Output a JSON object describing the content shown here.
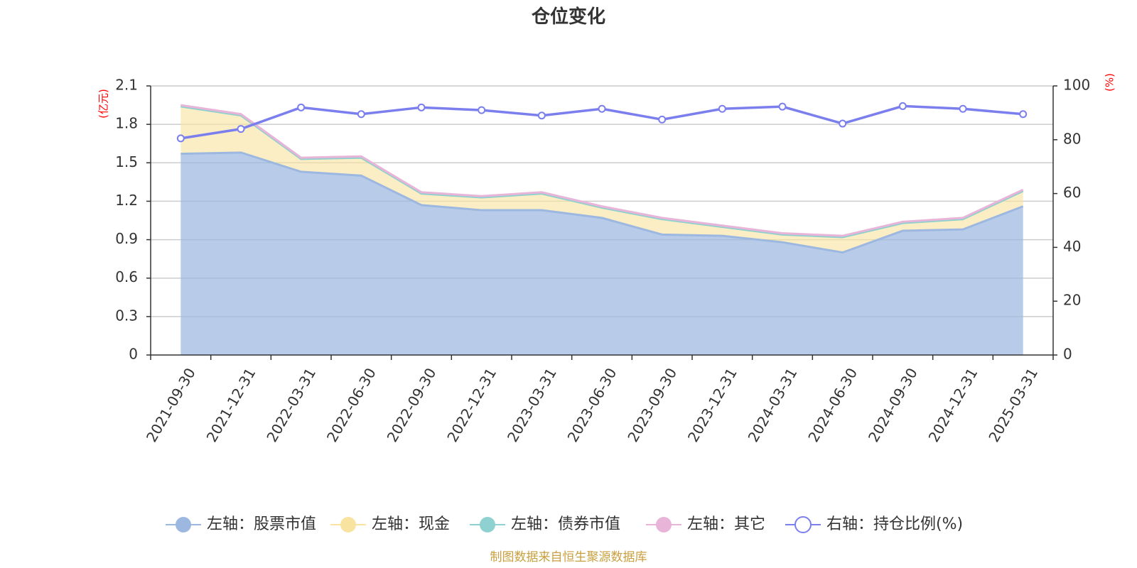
{
  "chart_data": {
    "type": "area",
    "title": "仓位变化",
    "categories": [
      "2021-09-30",
      "2021-12-31",
      "2022-03-31",
      "2022-06-30",
      "2022-09-30",
      "2022-12-31",
      "2023-03-31",
      "2023-06-30",
      "2023-09-30",
      "2023-12-31",
      "2024-03-31",
      "2024-06-30",
      "2024-09-30",
      "2024-12-31",
      "2025-03-31"
    ],
    "left_axis": {
      "unit": "(亿元)",
      "ylim": [
        0,
        2.1
      ],
      "ticks": [
        "0",
        "0.3",
        "0.6",
        "0.9",
        "1.2",
        "1.5",
        "1.8",
        "2.1"
      ]
    },
    "right_axis": {
      "unit": "(%)",
      "ylim": [
        0,
        100
      ],
      "ticks": [
        "0",
        "20",
        "40",
        "60",
        "80",
        "100"
      ]
    },
    "stacked": true,
    "series": [
      {
        "name": "左轴：股票市值",
        "axis": "left",
        "color": "#9db8e0",
        "values": [
          1.57,
          1.58,
          1.43,
          1.4,
          1.17,
          1.13,
          1.13,
          1.07,
          0.94,
          0.93,
          0.88,
          0.8,
          0.97,
          0.98,
          1.16
        ]
      },
      {
        "name": "左轴：现金",
        "axis": "left",
        "color": "#f8e4a0",
        "values": [
          0.37,
          0.29,
          0.1,
          0.14,
          0.09,
          0.1,
          0.13,
          0.08,
          0.12,
          0.07,
          0.06,
          0.12,
          0.06,
          0.08,
          0.12
        ]
      },
      {
        "name": "左轴：债券市值",
        "axis": "left",
        "color": "#8fd0d0",
        "values": [
          0,
          0,
          0,
          0,
          0,
          0,
          0,
          0,
          0,
          0,
          0,
          0,
          0,
          0,
          0
        ]
      },
      {
        "name": "左轴：其它",
        "axis": "left",
        "color": "#e8b4d8",
        "values": [
          0.01,
          0.01,
          0.01,
          0.01,
          0.01,
          0.01,
          0.01,
          0.01,
          0.01,
          0.01,
          0.01,
          0.01,
          0.01,
          0.01,
          0.01
        ]
      },
      {
        "name": "右轴：持仓比例(%)",
        "axis": "right",
        "color": "#7b7fee",
        "values": [
          80.5,
          84.0,
          92.0,
          89.5,
          92.0,
          91.0,
          89.0,
          91.5,
          87.5,
          91.5,
          92.3,
          86.0,
          92.5,
          91.5,
          89.5
        ]
      }
    ],
    "grid": true,
    "legend_position": "bottom",
    "source": "制图数据来自恒生聚源数据库"
  }
}
